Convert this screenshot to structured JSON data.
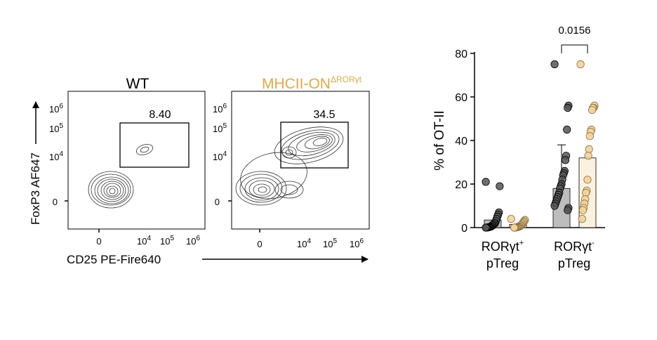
{
  "colors": {
    "wt": "#000000",
    "mhcii": "#E8A843",
    "wt_dot": "#555555",
    "mhcii_dot": "#F2D49B",
    "wt_bar": "#BDBDBD",
    "mhcii_bar": "#FBF1E0"
  },
  "flow_panels": [
    {
      "title": "WT",
      "gate_value": "8.40",
      "y_ticks": [
        {
          "base": "10",
          "exp": "6"
        },
        {
          "base": "10",
          "exp": "5"
        },
        {
          "base": "10",
          "exp": "4"
        },
        {
          "base": "0",
          "exp": ""
        }
      ],
      "x_ticks": [
        {
          "base": "0",
          "exp": ""
        },
        {
          "base": "10",
          "exp": "4"
        },
        {
          "base": "10",
          "exp": "5"
        },
        {
          "base": "10",
          "exp": "6"
        }
      ]
    },
    {
      "title_main": "MHCII-ON",
      "title_sup": "ΔRORγt",
      "gate_value": "34.5",
      "y_ticks": [
        {
          "base": "10",
          "exp": "6"
        },
        {
          "base": "10",
          "exp": "5"
        },
        {
          "base": "10",
          "exp": "4"
        },
        {
          "base": "0",
          "exp": ""
        }
      ],
      "x_ticks": [
        {
          "base": "0",
          "exp": ""
        },
        {
          "base": "10",
          "exp": "4"
        },
        {
          "base": "10",
          "exp": "5"
        },
        {
          "base": "10",
          "exp": "6"
        }
      ]
    }
  ],
  "flow_axes": {
    "y_label": "FoxP3 AF647",
    "x_label": "CD25 PE-Fire640"
  },
  "chart_data": {
    "type": "bar",
    "ylabel": "% of OT-II",
    "ylim": [
      0,
      80
    ],
    "yticks": [
      0,
      20,
      40,
      60,
      80
    ],
    "categories": [
      {
        "main": "RORγt",
        "sup": "+",
        "line2": "pTreg"
      },
      {
        "main": "RORγt",
        "sup": "-",
        "line2": "pTreg"
      }
    ],
    "groups": [
      {
        "category_index": 0,
        "genotype": "wt",
        "mean": 3.5,
        "sd": 0,
        "points": [
          21,
          19,
          7,
          6,
          5,
          4,
          3,
          2,
          2,
          1.5,
          1,
          1,
          0.5,
          0.5,
          0.3,
          0.2,
          0.1,
          0.1,
          0,
          0
        ]
      },
      {
        "category_index": 0,
        "genotype": "mhcii",
        "mean": 1.5,
        "sd": 0,
        "points": [
          4,
          3.5,
          3,
          2.5,
          2,
          1.5,
          1,
          1,
          0.5,
          0.5,
          0.3,
          0.2,
          0.1,
          0.1,
          0,
          0
        ]
      },
      {
        "category_index": 1,
        "genotype": "wt",
        "mean": 18,
        "sd": 20,
        "points": [
          75,
          56,
          55,
          45,
          33,
          31,
          26,
          25,
          24,
          22,
          20,
          19,
          18,
          16,
          15,
          14,
          13,
          12,
          11,
          10,
          9,
          8
        ]
      },
      {
        "category_index": 1,
        "genotype": "mhcii",
        "mean": 32,
        "sd": 0,
        "points": [
          75,
          56,
          55,
          55,
          54,
          45,
          44,
          42,
          36,
          33,
          22,
          17,
          16,
          13,
          11,
          9,
          8,
          4
        ]
      }
    ],
    "comparison": {
      "category_index": 1,
      "p_value": "0.0156"
    }
  }
}
